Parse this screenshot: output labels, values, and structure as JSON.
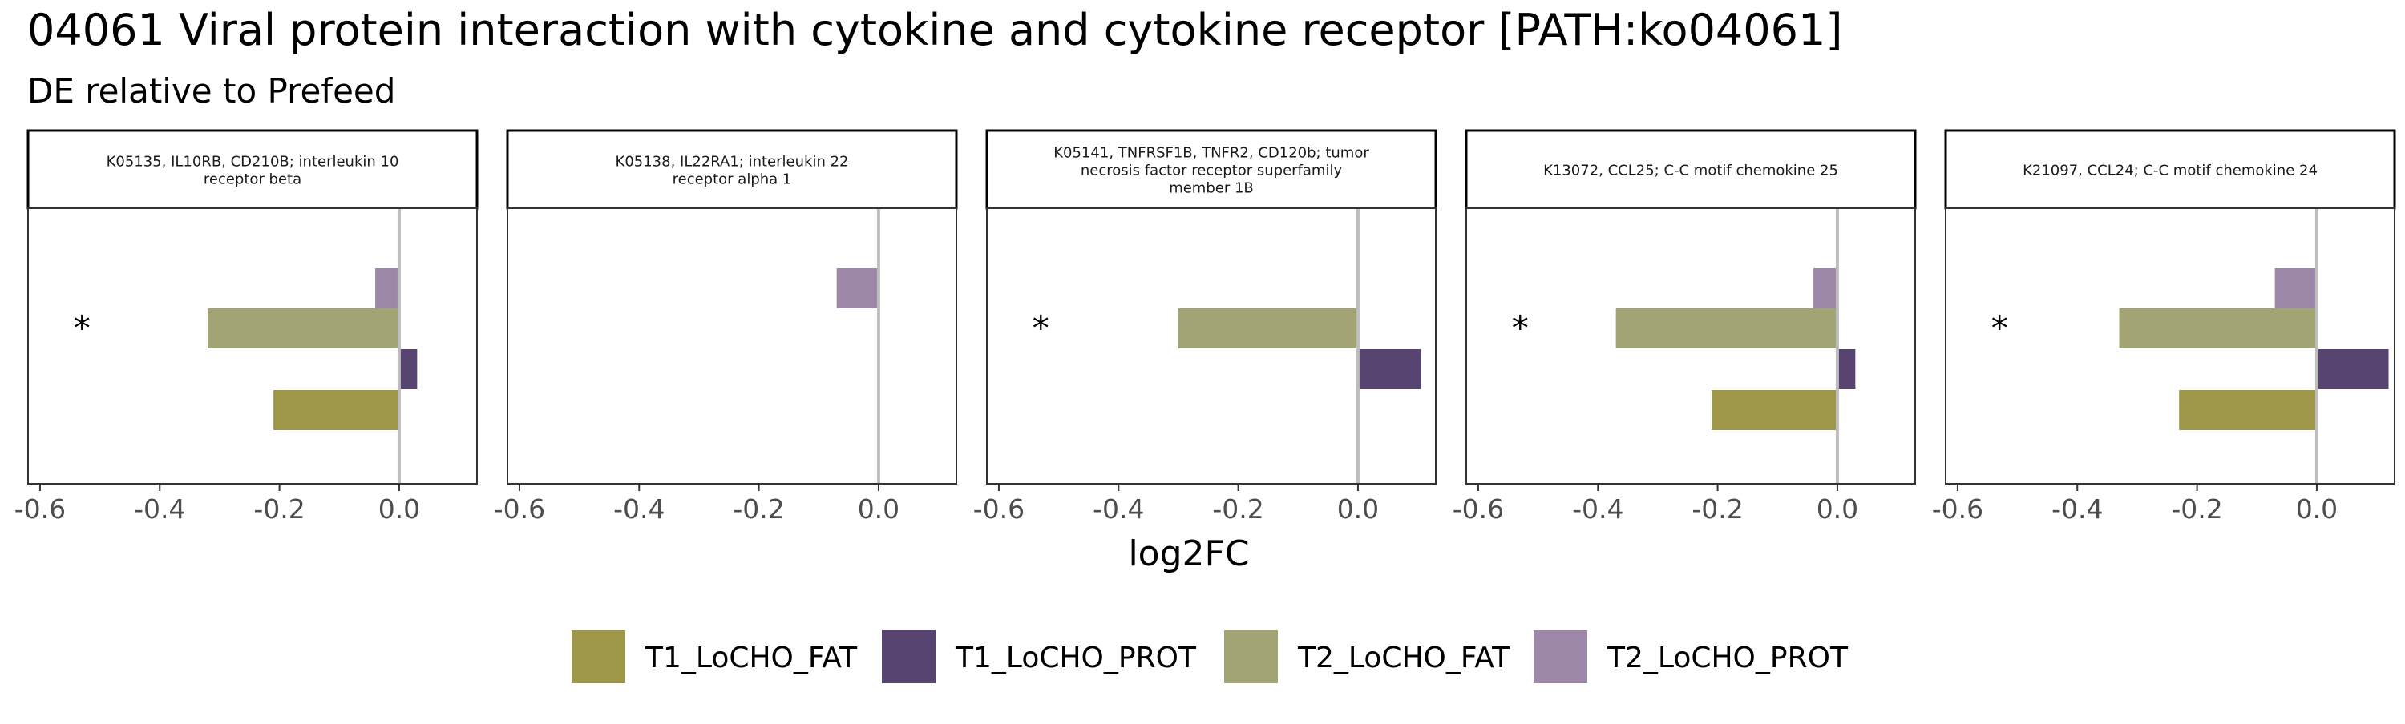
{
  "chart_data": {
    "type": "bar",
    "orientation": "horizontal",
    "title": "04061 Viral protein interaction with cytokine and cytokine receptor [PATH:ko04061]",
    "subtitle": "DE relative to Prefeed",
    "xlabel": "log2FC",
    "xlim": [
      -0.62,
      0.13
    ],
    "xticks": [
      -0.6,
      -0.4,
      -0.2,
      0.0
    ],
    "xtick_labels": [
      "-0.6",
      "-0.4",
      "-0.2",
      "0.0"
    ],
    "grid": false,
    "legend_position": "bottom",
    "series": [
      {
        "name": "T1_LoCHO_FAT",
        "color": "#9E9649"
      },
      {
        "name": "T1_LoCHO_PROT",
        "color": "#574470"
      },
      {
        "name": "T2_LoCHO_FAT",
        "color": "#A2A474"
      },
      {
        "name": "T2_LoCHO_PROT",
        "color": "#9D88A9"
      }
    ],
    "facets": [
      {
        "label": "K05135, IL10RB, CD210B; interleukin 10 receptor beta",
        "label_lines": [
          "K05135, IL10RB, CD210B; interleukin 10",
          "receptor beta"
        ],
        "values": {
          "T1_LoCHO_FAT": -0.21,
          "T1_LoCHO_PROT": 0.03,
          "T2_LoCHO_FAT": -0.32,
          "T2_LoCHO_PROT": -0.04
        },
        "annotation": "*"
      },
      {
        "label": "K05138, IL22RA1; interleukin 22 receptor alpha 1",
        "label_lines": [
          "K05138, IL22RA1; interleukin 22",
          "receptor alpha 1"
        ],
        "values": {
          "T1_LoCHO_FAT": null,
          "T1_LoCHO_PROT": null,
          "T2_LoCHO_FAT": null,
          "T2_LoCHO_PROT": -0.07
        },
        "annotation": ""
      },
      {
        "label": "K05141, TNFRSF1B, TNFR2, CD120b; tumor necrosis factor receptor superfamily member 1B",
        "label_lines": [
          "K05141, TNFRSF1B, TNFR2, CD120b; tumor",
          "necrosis factor receptor superfamily",
          "member 1B"
        ],
        "values": {
          "T1_LoCHO_FAT": null,
          "T1_LoCHO_PROT": 0.105,
          "T2_LoCHO_FAT": -0.3,
          "T2_LoCHO_PROT": null
        },
        "annotation": "*"
      },
      {
        "label": "K13072, CCL25; C-C motif chemokine 25",
        "label_lines": [
          "K13072, CCL25; C-C motif chemokine 25"
        ],
        "values": {
          "T1_LoCHO_FAT": -0.21,
          "T1_LoCHO_PROT": 0.03,
          "T2_LoCHO_FAT": -0.37,
          "T2_LoCHO_PROT": -0.04
        },
        "annotation": "*"
      },
      {
        "label": "K21097, CCL24; C-C motif chemokine 24",
        "label_lines": [
          "K21097, CCL24; C-C motif chemokine 24"
        ],
        "values": {
          "T1_LoCHO_FAT": -0.23,
          "T1_LoCHO_PROT": 0.12,
          "T2_LoCHO_FAT": -0.33,
          "T2_LoCHO_PROT": -0.07
        },
        "annotation": "*"
      }
    ]
  }
}
